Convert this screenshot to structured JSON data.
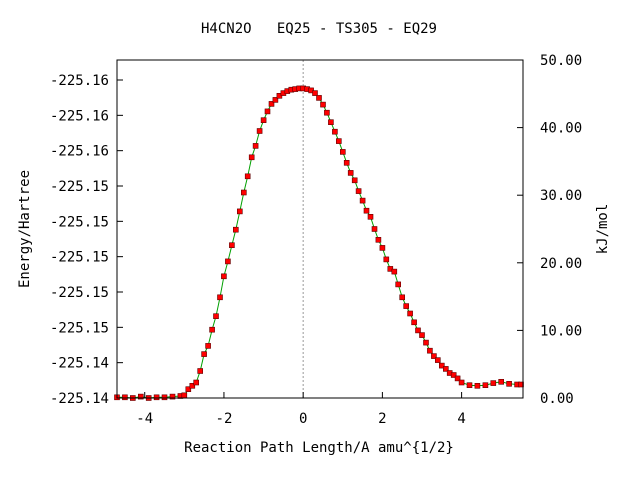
{
  "chart_data": {
    "type": "line",
    "title": "H4CN2O   EQ25 - TS305 - EQ29",
    "xlabel": "Reaction Path Length/A amu^{1/2}",
    "ylabel": "Energy/Hartree",
    "y2label": "kJ/mol",
    "xlim": [
      -4.7,
      5.55
    ],
    "ylim_kjmol": [
      0,
      50
    ],
    "x_ticks": [
      -4,
      -2,
      0,
      2,
      4
    ],
    "x_tick_labels": [
      "-4",
      "-2",
      "0",
      "2",
      "4"
    ],
    "y_tick_labels": [
      "-225.14",
      "-225.14",
      "-225.15",
      "-225.15",
      "-225.15",
      "-225.15",
      "-225.15",
      "-225.16",
      "-225.16",
      "-225.16"
    ],
    "y2_ticks": [
      0,
      10,
      20,
      30,
      40,
      50
    ],
    "y2_tick_labels": [
      "0.00",
      "10.00",
      "20.00",
      "30.00",
      "40.00",
      "50.00"
    ],
    "ts_marker_x": 0,
    "grid": false,
    "colors": {
      "line": "#00a000",
      "marker": "#ff0000",
      "marker_edge": "#600000",
      "ts_line": "#999999"
    },
    "series": [
      {
        "x": [
          -4.7,
          -4.5,
          -4.3,
          -4.1,
          -3.9,
          -3.7,
          -3.5,
          -3.3,
          -3.1,
          -3.0,
          -2.9,
          -2.8,
          -2.7,
          -2.6,
          -2.5,
          -2.4,
          -2.3,
          -2.2,
          -2.1,
          -2.0,
          -1.9,
          -1.8,
          -1.7,
          -1.6,
          -1.5,
          -1.4,
          -1.3,
          -1.2,
          -1.1,
          -1.0,
          -0.9,
          -0.8,
          -0.7,
          -0.6,
          -0.5,
          -0.4,
          -0.3,
          -0.2,
          -0.1,
          0.0,
          0.1,
          0.2,
          0.3,
          0.4,
          0.5,
          0.6,
          0.7,
          0.8,
          0.9,
          1.0,
          1.1,
          1.2,
          1.3,
          1.4,
          1.5,
          1.6,
          1.7,
          1.8,
          1.9,
          2.0,
          2.1,
          2.2,
          2.3,
          2.4,
          2.5,
          2.6,
          2.7,
          2.8,
          2.9,
          3.0,
          3.1,
          3.2,
          3.3,
          3.4,
          3.5,
          3.6,
          3.7,
          3.8,
          3.9,
          4.0,
          4.2,
          4.4,
          4.6,
          4.8,
          5.0,
          5.2,
          5.4,
          5.5
        ],
        "y_kjmol": [
          0.1,
          0.1,
          0.0,
          0.2,
          0.0,
          0.1,
          0.1,
          0.2,
          0.3,
          0.4,
          1.3,
          1.8,
          2.3,
          4.0,
          6.5,
          7.7,
          10.1,
          12.1,
          14.9,
          18.0,
          20.2,
          22.6,
          24.9,
          27.6,
          30.4,
          32.8,
          35.6,
          37.3,
          39.5,
          41.1,
          42.4,
          43.5,
          44.1,
          44.7,
          45.1,
          45.4,
          45.6,
          45.7,
          45.8,
          45.8,
          45.7,
          45.5,
          45.1,
          44.4,
          43.4,
          42.2,
          40.8,
          39.4,
          38.0,
          36.4,
          34.8,
          33.3,
          32.2,
          30.6,
          29.2,
          27.7,
          26.8,
          25.0,
          23.4,
          22.2,
          20.5,
          19.1,
          18.7,
          16.8,
          14.9,
          13.6,
          12.5,
          11.2,
          10.0,
          9.3,
          8.2,
          7.0,
          6.2,
          5.6,
          4.8,
          4.3,
          3.7,
          3.4,
          2.9,
          2.3,
          1.9,
          1.8,
          1.9,
          2.2,
          2.4,
          2.1,
          2.0,
          2.0
        ]
      }
    ]
  }
}
